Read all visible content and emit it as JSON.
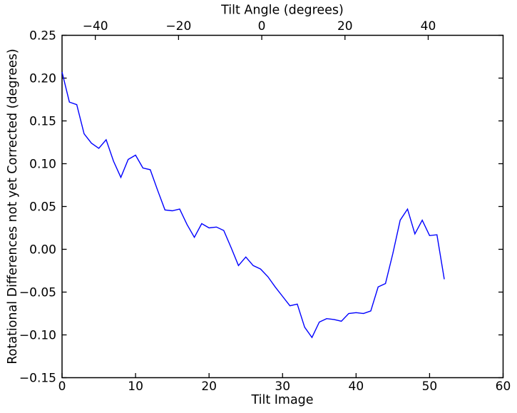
{
  "chart_data": {
    "type": "line",
    "top_axis_title": "Tilt Angle (degrees)",
    "xlabel": "Tilt Image",
    "ylabel": "Rotational Differences not yet Corrected (degrees)",
    "xlim": [
      0,
      60
    ],
    "ylim": [
      -0.15,
      0.25
    ],
    "top_xlim": [
      -48,
      58
    ],
    "x_tick_values": [
      0,
      10,
      20,
      30,
      40,
      50,
      60
    ],
    "x_tick_labels": [
      "0",
      "10",
      "20",
      "30",
      "40",
      "50",
      "60"
    ],
    "y_tick_values": [
      0.25,
      0.2,
      0.15,
      0.1,
      0.05,
      0.0,
      -0.05,
      -0.1,
      -0.15
    ],
    "y_tick_labels": [
      "0.25",
      "0.20",
      "0.15",
      "0.10",
      "0.05",
      "0.00",
      "−0.05",
      "−0.10",
      "−0.15"
    ],
    "top_x_tick_values": [
      -40,
      -20,
      0,
      20,
      40
    ],
    "top_x_tick_labels": [
      "−40",
      "−20",
      "0",
      "20",
      "40"
    ],
    "grid": false,
    "legend": null,
    "background_color": "#ffffff",
    "axis_color": "#000000",
    "series": [
      {
        "color": "#0000ff",
        "x": [
          0,
          1,
          2,
          3,
          4,
          5,
          6,
          7,
          8,
          9,
          10,
          11,
          12,
          13,
          14,
          15,
          16,
          17,
          18,
          19,
          20,
          21,
          22,
          23,
          24,
          25,
          26,
          27,
          28,
          29,
          30,
          31,
          32,
          33,
          34,
          35,
          36,
          37,
          38,
          39,
          40,
          41,
          42,
          43,
          44,
          45,
          46,
          47,
          48,
          49,
          50,
          51,
          52
        ],
        "y": [
          0.207,
          0.172,
          0.169,
          0.135,
          0.124,
          0.118,
          0.128,
          0.103,
          0.084,
          0.105,
          0.11,
          0.095,
          0.093,
          0.069,
          0.046,
          0.045,
          0.047,
          0.029,
          0.014,
          0.03,
          0.025,
          0.026,
          0.022,
          0.002,
          -0.019,
          -0.009,
          -0.019,
          -0.023,
          -0.032,
          -0.044,
          -0.055,
          -0.066,
          -0.064,
          -0.091,
          -0.103,
          -0.085,
          -0.081,
          -0.082,
          -0.084,
          -0.075,
          -0.074,
          -0.075,
          -0.072,
          -0.044,
          -0.04,
          -0.005,
          0.034,
          0.047,
          0.018,
          0.034,
          0.016,
          0.017,
          -0.035
        ]
      }
    ]
  }
}
